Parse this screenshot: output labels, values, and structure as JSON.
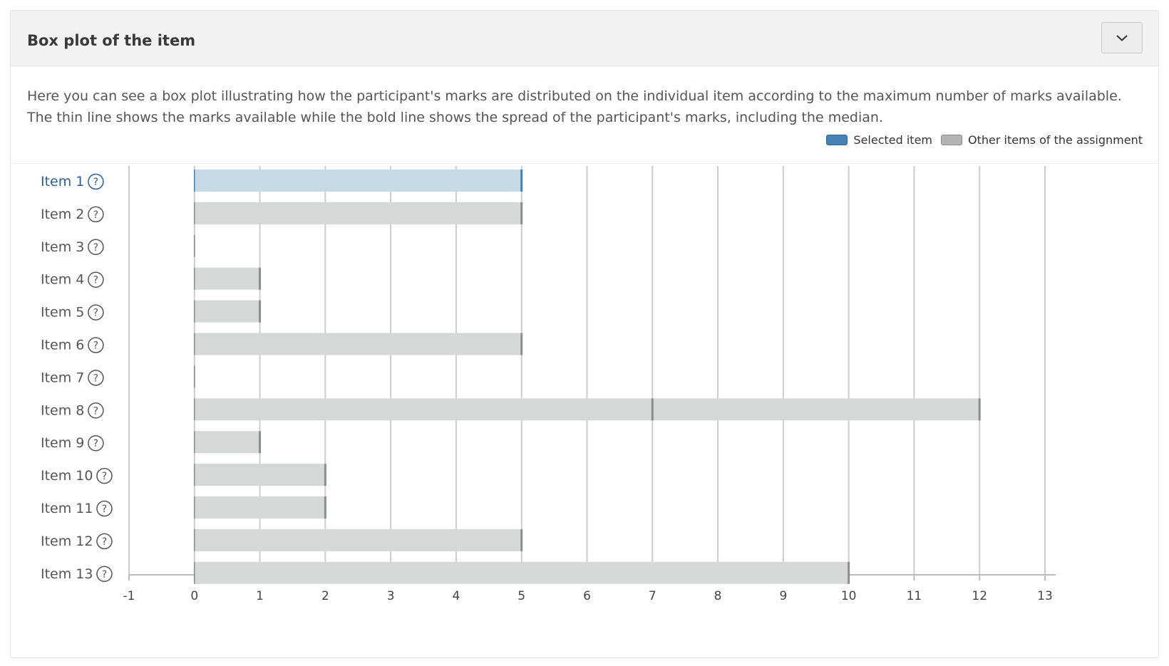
{
  "panel": {
    "title": "Box plot of the item",
    "collapse_icon": "chevron-down-icon",
    "description": "Here you can see a box plot illustrating how the participant's marks are distributed on the individual item according to the maximum number of marks available. The thin line shows the marks available while the bold line shows the spread of the participant's marks, including the median."
  },
  "legend": {
    "selected_label": "Selected item",
    "other_label": "Other items of the assignment",
    "selected_color": "#4682b4",
    "other_color": "#b3b3b3"
  },
  "chart_data": {
    "type": "bar",
    "orientation": "horizontal",
    "categories": [
      "Item 1",
      "Item 2",
      "Item 3",
      "Item 4",
      "Item 5",
      "Item 6",
      "Item 7",
      "Item 8",
      "Item 9",
      "Item 10",
      "Item 11",
      "Item 12",
      "Item 13"
    ],
    "series": [
      {
        "name": "Marks available",
        "values": [
          5,
          5,
          0,
          1,
          1,
          5,
          0,
          12,
          1,
          2,
          2,
          5,
          10
        ],
        "medians": [
          null,
          null,
          null,
          null,
          null,
          null,
          null,
          7,
          null,
          null,
          null,
          null,
          null
        ]
      }
    ],
    "selected_index": 0,
    "xlim": [
      -1,
      13
    ],
    "xticks": [
      -1,
      0,
      1,
      2,
      3,
      4,
      5,
      6,
      7,
      8,
      9,
      10,
      11,
      12,
      13
    ],
    "grid": true,
    "help_icon_symbol": "?",
    "colors": {
      "selected_fill": "#c5d9e6",
      "selected_edge": "#4a7fb0",
      "selected_label": "#2b5f8f",
      "other_fill": "#d6d8d7",
      "other_edge": "#8c8c8c",
      "other_label": "#555555",
      "grid": "#cccccc",
      "axis": "#bbbbbb"
    }
  }
}
